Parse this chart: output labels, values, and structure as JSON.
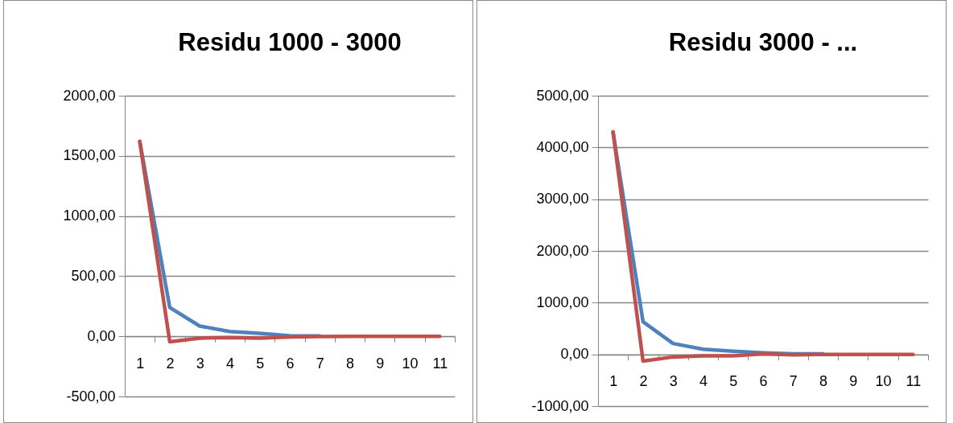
{
  "chart_data": [
    {
      "type": "line",
      "title": "Residu 1000 - 3000",
      "categories": [
        "1",
        "2",
        "3",
        "4",
        "5",
        "6",
        "7",
        "8",
        "9",
        "10",
        "11"
      ],
      "series": [
        {
          "color": "#4f81bd",
          "values": [
            1620,
            240,
            85,
            40,
            25,
            5,
            3,
            null,
            null,
            null,
            null
          ]
        },
        {
          "color": "#c0504d",
          "values": [
            1620,
            -45,
            -15,
            -10,
            -15,
            -5,
            -2,
            0,
            0,
            0,
            0
          ]
        }
      ],
      "ylim": [
        -500,
        2000
      ],
      "yticks": [
        {
          "value": -500,
          "label": "-500,00"
        },
        {
          "value": 0,
          "label": "0,00"
        },
        {
          "value": 500,
          "label": "500,00"
        },
        {
          "value": 1000,
          "label": "1000,00"
        },
        {
          "value": 1500,
          "label": "1500,00"
        },
        {
          "value": 2000,
          "label": "2000,00"
        }
      ],
      "grid": "y",
      "legend": false,
      "marker": "none",
      "line_style": "solid"
    },
    {
      "type": "line",
      "title": "Residu 3000 - ...",
      "categories": [
        "1",
        "2",
        "3",
        "4",
        "5",
        "6",
        "7",
        "8",
        "9",
        "10",
        "11"
      ],
      "series": [
        {
          "color": "#4f81bd",
          "values": [
            4300,
            630,
            210,
            100,
            60,
            30,
            10,
            10,
            null,
            null,
            null
          ]
        },
        {
          "color": "#c0504d",
          "values": [
            4300,
            -130,
            -50,
            -30,
            -30,
            10,
            -10,
            0,
            0,
            0,
            0
          ]
        }
      ],
      "ylim": [
        -1000,
        5000
      ],
      "yticks": [
        {
          "value": -1000,
          "label": "-1000,00"
        },
        {
          "value": 0,
          "label": "0,00"
        },
        {
          "value": 1000,
          "label": "1000,00"
        },
        {
          "value": 2000,
          "label": "2000,00"
        },
        {
          "value": 3000,
          "label": "3000,00"
        },
        {
          "value": 4000,
          "label": "4000,00"
        },
        {
          "value": 5000,
          "label": "5000,00"
        }
      ],
      "grid": "y",
      "legend": false,
      "marker": "none",
      "line_style": "solid"
    }
  ]
}
